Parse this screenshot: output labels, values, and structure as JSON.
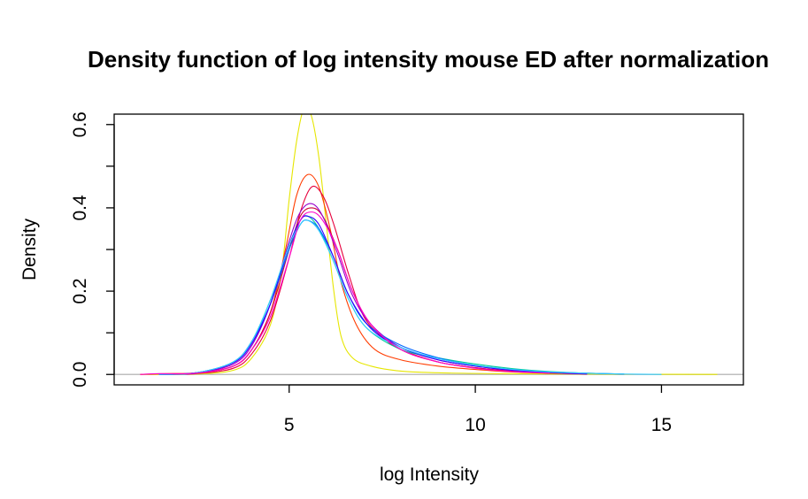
{
  "chart_data": {
    "type": "line",
    "title": "Density function of log intensity mouse ED after normalization",
    "xlabel": "log Intensity",
    "ylabel": "Density",
    "xlim": [
      0.3,
      17.2
    ],
    "ylim": [
      -0.025,
      0.625
    ],
    "x_ticks": [
      5,
      10,
      15
    ],
    "y_ticks": [
      0.0,
      0.2,
      0.4,
      0.6
    ],
    "y_minor_ticks": [
      0.1,
      0.3,
      0.5
    ],
    "baseline": 0,
    "baseline_color": "#bebebe",
    "grid": false,
    "legend": "none",
    "series": [
      {
        "color": "#e6e600",
        "points": [
          [
            1.0,
            0
          ],
          [
            2.5,
            0.001
          ],
          [
            3.5,
            0.01
          ],
          [
            4.0,
            0.04
          ],
          [
            4.5,
            0.12
          ],
          [
            4.8,
            0.25
          ],
          [
            5.0,
            0.42
          ],
          [
            5.2,
            0.56
          ],
          [
            5.4,
            0.64
          ],
          [
            5.6,
            0.62
          ],
          [
            5.8,
            0.52
          ],
          [
            6.0,
            0.36
          ],
          [
            6.2,
            0.2
          ],
          [
            6.4,
            0.09
          ],
          [
            6.7,
            0.04
          ],
          [
            7.2,
            0.02
          ],
          [
            8.0,
            0.008
          ],
          [
            9.0,
            0.004
          ],
          [
            10.5,
            0.002
          ],
          [
            12.5,
            0.001
          ],
          [
            16.5,
            0
          ]
        ]
      },
      {
        "color": "#ff3c00",
        "points": [
          [
            1.0,
            0
          ],
          [
            1.7,
            0.002
          ],
          [
            2.5,
            0.004
          ],
          [
            3.5,
            0.02
          ],
          [
            4.0,
            0.06
          ],
          [
            4.5,
            0.15
          ],
          [
            4.9,
            0.3
          ],
          [
            5.2,
            0.43
          ],
          [
            5.5,
            0.48
          ],
          [
            5.8,
            0.45
          ],
          [
            6.1,
            0.35
          ],
          [
            6.4,
            0.22
          ],
          [
            6.8,
            0.12
          ],
          [
            7.3,
            0.06
          ],
          [
            8.0,
            0.035
          ],
          [
            9.0,
            0.02
          ],
          [
            10.0,
            0.012
          ],
          [
            11.0,
            0.006
          ],
          [
            12.0,
            0.003
          ],
          [
            13.0,
            0.001
          ]
        ]
      },
      {
        "color": "#e6003c",
        "points": [
          [
            1.5,
            0
          ],
          [
            2.5,
            0.002
          ],
          [
            3.5,
            0.015
          ],
          [
            4.0,
            0.05
          ],
          [
            4.5,
            0.13
          ],
          [
            5.0,
            0.28
          ],
          [
            5.3,
            0.39
          ],
          [
            5.6,
            0.45
          ],
          [
            5.9,
            0.43
          ],
          [
            6.2,
            0.36
          ],
          [
            6.6,
            0.24
          ],
          [
            7.0,
            0.14
          ],
          [
            7.5,
            0.09
          ],
          [
            8.0,
            0.06
          ],
          [
            9.0,
            0.03
          ],
          [
            10.0,
            0.016
          ],
          [
            11.0,
            0.008
          ],
          [
            12.0,
            0.004
          ],
          [
            13.0,
            0.001
          ]
        ]
      },
      {
        "color": "#cc0033",
        "points": [
          [
            1.5,
            0
          ],
          [
            2.5,
            0.003
          ],
          [
            3.5,
            0.02
          ],
          [
            4.0,
            0.06
          ],
          [
            4.5,
            0.15
          ],
          [
            5.0,
            0.3
          ],
          [
            5.3,
            0.38
          ],
          [
            5.6,
            0.4
          ],
          [
            5.9,
            0.38
          ],
          [
            6.3,
            0.3
          ],
          [
            6.7,
            0.2
          ],
          [
            7.2,
            0.12
          ],
          [
            8.0,
            0.06
          ],
          [
            9.0,
            0.03
          ],
          [
            10.0,
            0.016
          ],
          [
            11.0,
            0.008
          ],
          [
            12.0,
            0.003
          ]
        ]
      },
      {
        "color": "#9900cc",
        "points": [
          [
            1.5,
            0
          ],
          [
            2.5,
            0.003
          ],
          [
            3.5,
            0.025
          ],
          [
            4.0,
            0.07
          ],
          [
            4.5,
            0.17
          ],
          [
            5.0,
            0.32
          ],
          [
            5.3,
            0.39
          ],
          [
            5.6,
            0.41
          ],
          [
            5.9,
            0.38
          ],
          [
            6.3,
            0.29
          ],
          [
            6.7,
            0.19
          ],
          [
            7.2,
            0.12
          ],
          [
            8.0,
            0.065
          ],
          [
            9.0,
            0.035
          ],
          [
            10.0,
            0.02
          ],
          [
            11.0,
            0.01
          ],
          [
            12.0,
            0.004
          ],
          [
            13.0,
            0.001
          ]
        ]
      },
      {
        "color": "#00cc99",
        "points": [
          [
            1.5,
            0
          ],
          [
            2.5,
            0.004
          ],
          [
            3.5,
            0.03
          ],
          [
            4.0,
            0.08
          ],
          [
            4.5,
            0.18
          ],
          [
            5.0,
            0.31
          ],
          [
            5.3,
            0.37
          ],
          [
            5.5,
            0.38
          ],
          [
            5.8,
            0.35
          ],
          [
            6.2,
            0.27
          ],
          [
            6.6,
            0.18
          ],
          [
            7.1,
            0.11
          ],
          [
            8.0,
            0.06
          ],
          [
            9.0,
            0.04
          ],
          [
            10.0,
            0.025
          ],
          [
            11.0,
            0.014
          ],
          [
            12.0,
            0.007
          ],
          [
            13.0,
            0.003
          ],
          [
            14.0,
            0.001
          ]
        ]
      },
      {
        "color": "#0066ff",
        "points": [
          [
            1.5,
            0
          ],
          [
            2.5,
            0.004
          ],
          [
            3.5,
            0.03
          ],
          [
            4.0,
            0.08
          ],
          [
            4.5,
            0.17
          ],
          [
            5.0,
            0.3
          ],
          [
            5.3,
            0.36
          ],
          [
            5.5,
            0.37
          ],
          [
            5.8,
            0.35
          ],
          [
            6.2,
            0.28
          ],
          [
            6.6,
            0.19
          ],
          [
            7.1,
            0.12
          ],
          [
            8.0,
            0.07
          ],
          [
            9.0,
            0.04
          ],
          [
            10.0,
            0.022
          ],
          [
            11.0,
            0.012
          ],
          [
            12.0,
            0.006
          ],
          [
            13.0,
            0.003
          ],
          [
            14.0,
            0.001
          ]
        ]
      },
      {
        "color": "#3300ff",
        "points": [
          [
            1.5,
            0
          ],
          [
            2.5,
            0.004
          ],
          [
            3.5,
            0.028
          ],
          [
            4.0,
            0.075
          ],
          [
            4.5,
            0.17
          ],
          [
            5.0,
            0.31
          ],
          [
            5.3,
            0.37
          ],
          [
            5.5,
            0.38
          ],
          [
            5.8,
            0.36
          ],
          [
            6.2,
            0.28
          ],
          [
            6.6,
            0.19
          ],
          [
            7.2,
            0.11
          ],
          [
            8.0,
            0.065
          ],
          [
            9.0,
            0.035
          ],
          [
            10.0,
            0.02
          ],
          [
            11.0,
            0.01
          ],
          [
            12.0,
            0.005
          ],
          [
            13.0,
            0.002
          ]
        ]
      },
      {
        "color": "#33ccff",
        "points": [
          [
            1.5,
            0
          ],
          [
            2.5,
            0.004
          ],
          [
            3.5,
            0.03
          ],
          [
            4.0,
            0.08
          ],
          [
            4.5,
            0.18
          ],
          [
            5.0,
            0.31
          ],
          [
            5.3,
            0.36
          ],
          [
            5.5,
            0.37
          ],
          [
            5.8,
            0.345
          ],
          [
            6.2,
            0.27
          ],
          [
            6.6,
            0.18
          ],
          [
            7.1,
            0.11
          ],
          [
            8.0,
            0.065
          ],
          [
            9.0,
            0.038
          ],
          [
            10.0,
            0.022
          ],
          [
            11.0,
            0.012
          ],
          [
            12.0,
            0.006
          ],
          [
            13.0,
            0.003
          ],
          [
            14.0,
            0.001
          ],
          [
            15.0,
            0
          ]
        ]
      },
      {
        "color": "#ff00cc",
        "points": [
          [
            1.0,
            0
          ],
          [
            1.5,
            0.002
          ],
          [
            2.5,
            0.003
          ],
          [
            3.5,
            0.02
          ],
          [
            4.0,
            0.06
          ],
          [
            4.5,
            0.14
          ],
          [
            5.0,
            0.28
          ],
          [
            5.3,
            0.37
          ],
          [
            5.6,
            0.39
          ],
          [
            5.9,
            0.37
          ],
          [
            6.3,
            0.3
          ],
          [
            6.7,
            0.2
          ],
          [
            7.2,
            0.12
          ],
          [
            8.0,
            0.06
          ],
          [
            9.0,
            0.03
          ],
          [
            10.0,
            0.015
          ],
          [
            11.0,
            0.007
          ],
          [
            12.0,
            0.003
          ]
        ]
      }
    ]
  }
}
